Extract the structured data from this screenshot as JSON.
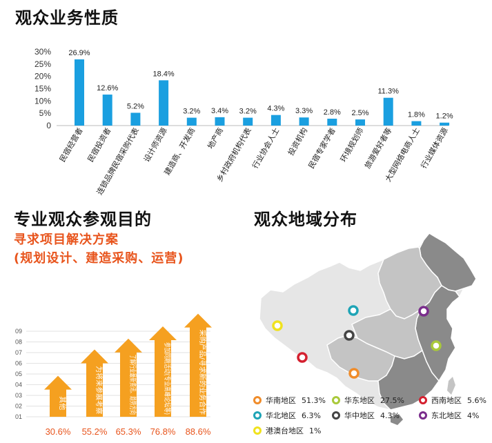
{
  "titles": {
    "business": "观众业务性质",
    "purpose": "专业观众参观目的",
    "purpose_sub1": "寻求项目解决方案",
    "purpose_sub2": "(规划设计、建造采购、运营)",
    "region": "观众地域分布"
  },
  "colors": {
    "bar_blue": "#1a9fe0",
    "arrow_orange": "#f5a020",
    "accent_orange": "#e8541c",
    "map_light": "#e6e6e6",
    "map_mid": "#c4c4c4",
    "map_dark": "#8a8a8a"
  },
  "chart_data": [
    {
      "type": "bar",
      "title": "观众业务性质",
      "categories": [
        "民宿经营者",
        "民宿投资者",
        "连锁品牌民宿采购代表",
        "设计师资源",
        "建造商、开发商",
        "地产商",
        "乡村政府机构代表",
        "行业协会人士",
        "投资机构",
        "民宿专家学者",
        "环境规划师",
        "旅游爱好者等",
        "大型网络电商人士",
        "行业媒体资源"
      ],
      "values": [
        26.9,
        12.6,
        5.2,
        18.4,
        3.2,
        3.4,
        3.2,
        4.3,
        3.3,
        2.8,
        2.5,
        11.3,
        1.8,
        1.2
      ],
      "value_labels": [
        "26.9%",
        "12.6%",
        "5.2%",
        "18.4%",
        "3.2%",
        "3.4%",
        "3.2%",
        "4.3%",
        "3.3%",
        "2.8%",
        "2.5%",
        "11.3%",
        "1.8%",
        "1.2%"
      ],
      "yticks": [
        "0",
        "5%",
        "10%",
        "15%",
        "20%",
        "25%",
        "30%"
      ],
      "ylim": [
        0,
        30
      ],
      "grid": false
    },
    {
      "type": "bar",
      "title": "专业观众参观目的",
      "categories": [
        "其他",
        "为将来参展考察",
        "了解行业最新资讯、趋势方向",
        "参加同期活动(专业高峰论坛等)",
        "采购产品/寻求新的业务合作"
      ],
      "values": [
        30.6,
        55.2,
        65.3,
        76.8,
        88.6
      ],
      "value_labels": [
        "30.6%",
        "55.2%",
        "65.3%",
        "76.8%",
        "88.6%"
      ],
      "yticks": [
        "01",
        "02",
        "03",
        "04",
        "05",
        "06",
        "07",
        "08",
        "09"
      ],
      "ylim": [
        0,
        90
      ],
      "grid": true
    },
    {
      "type": "table",
      "title": "观众地域分布",
      "regions": [
        {
          "name": "华南地区",
          "value": "51.3%",
          "color": "#f08c2a"
        },
        {
          "name": "华东地区",
          "value": "27.5%",
          "color": "#a9c93a"
        },
        {
          "name": "西南地区",
          "value": "5.6%",
          "color": "#d4202f"
        },
        {
          "name": "华北地区",
          "value": "6.3%",
          "color": "#1fa4b6"
        },
        {
          "name": "华中地区",
          "value": "4.3%",
          "color": "#444444"
        },
        {
          "name": "东北地区",
          "value": "4%",
          "color": "#7a2d8c"
        },
        {
          "name": "港澳台地区",
          "value": "1%",
          "color": "#f0e21e"
        }
      ]
    }
  ]
}
